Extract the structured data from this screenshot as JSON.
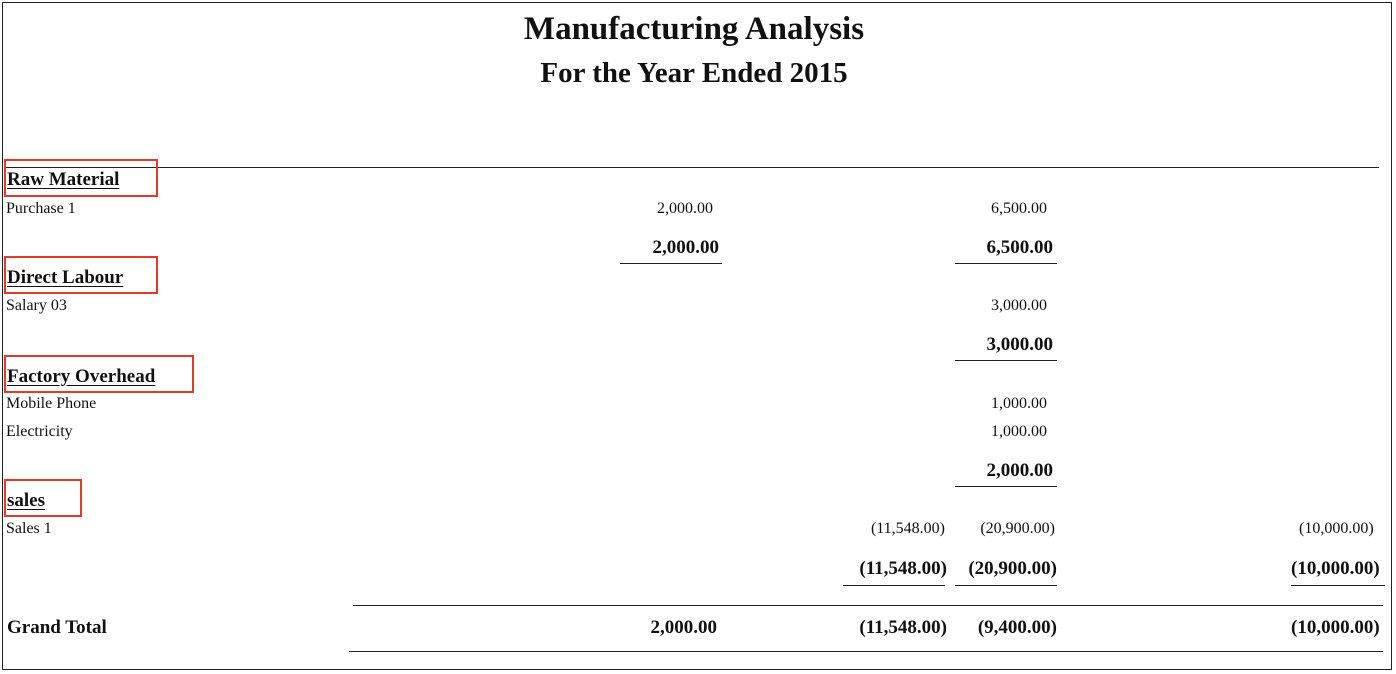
{
  "report": {
    "title": "Manufacturing Analysis",
    "subtitle": "For the Year Ended 2015"
  },
  "sections": {
    "raw_material": {
      "heading": "Raw Material",
      "items": [
        {
          "label": "Purchase 1",
          "c1": "2,000.00",
          "c3": "6,500.00"
        }
      ],
      "subtotal": {
        "c1": "2,000.00",
        "c3": "6,500.00"
      }
    },
    "direct_labour": {
      "heading": "Direct Labour",
      "items": [
        {
          "label": "Salary 03",
          "c3": "3,000.00"
        }
      ],
      "subtotal": {
        "c3": "3,000.00"
      }
    },
    "factory_overhead": {
      "heading": "Factory Overhead",
      "items": [
        {
          "label": "Mobile Phone",
          "c3": "1,000.00"
        },
        {
          "label": "Electricity",
          "c3": "1,000.00"
        }
      ],
      "subtotal": {
        "c3": "2,000.00"
      }
    },
    "sales": {
      "heading": "sales",
      "items": [
        {
          "label": "Sales 1",
          "c2": "(11,548.00)",
          "c3": "(20,900.00)",
          "c4": "(10,000.00)"
        }
      ],
      "subtotal": {
        "c2": "(11,548.00)",
        "c3": "(20,900.00)",
        "c4": "(10,000.00)"
      }
    }
  },
  "grand_total": {
    "label": "Grand Total",
    "c1": "2,000.00",
    "c2": "(11,548.00)",
    "c3": "(9,400.00)",
    "c4": "(10,000.00)"
  }
}
